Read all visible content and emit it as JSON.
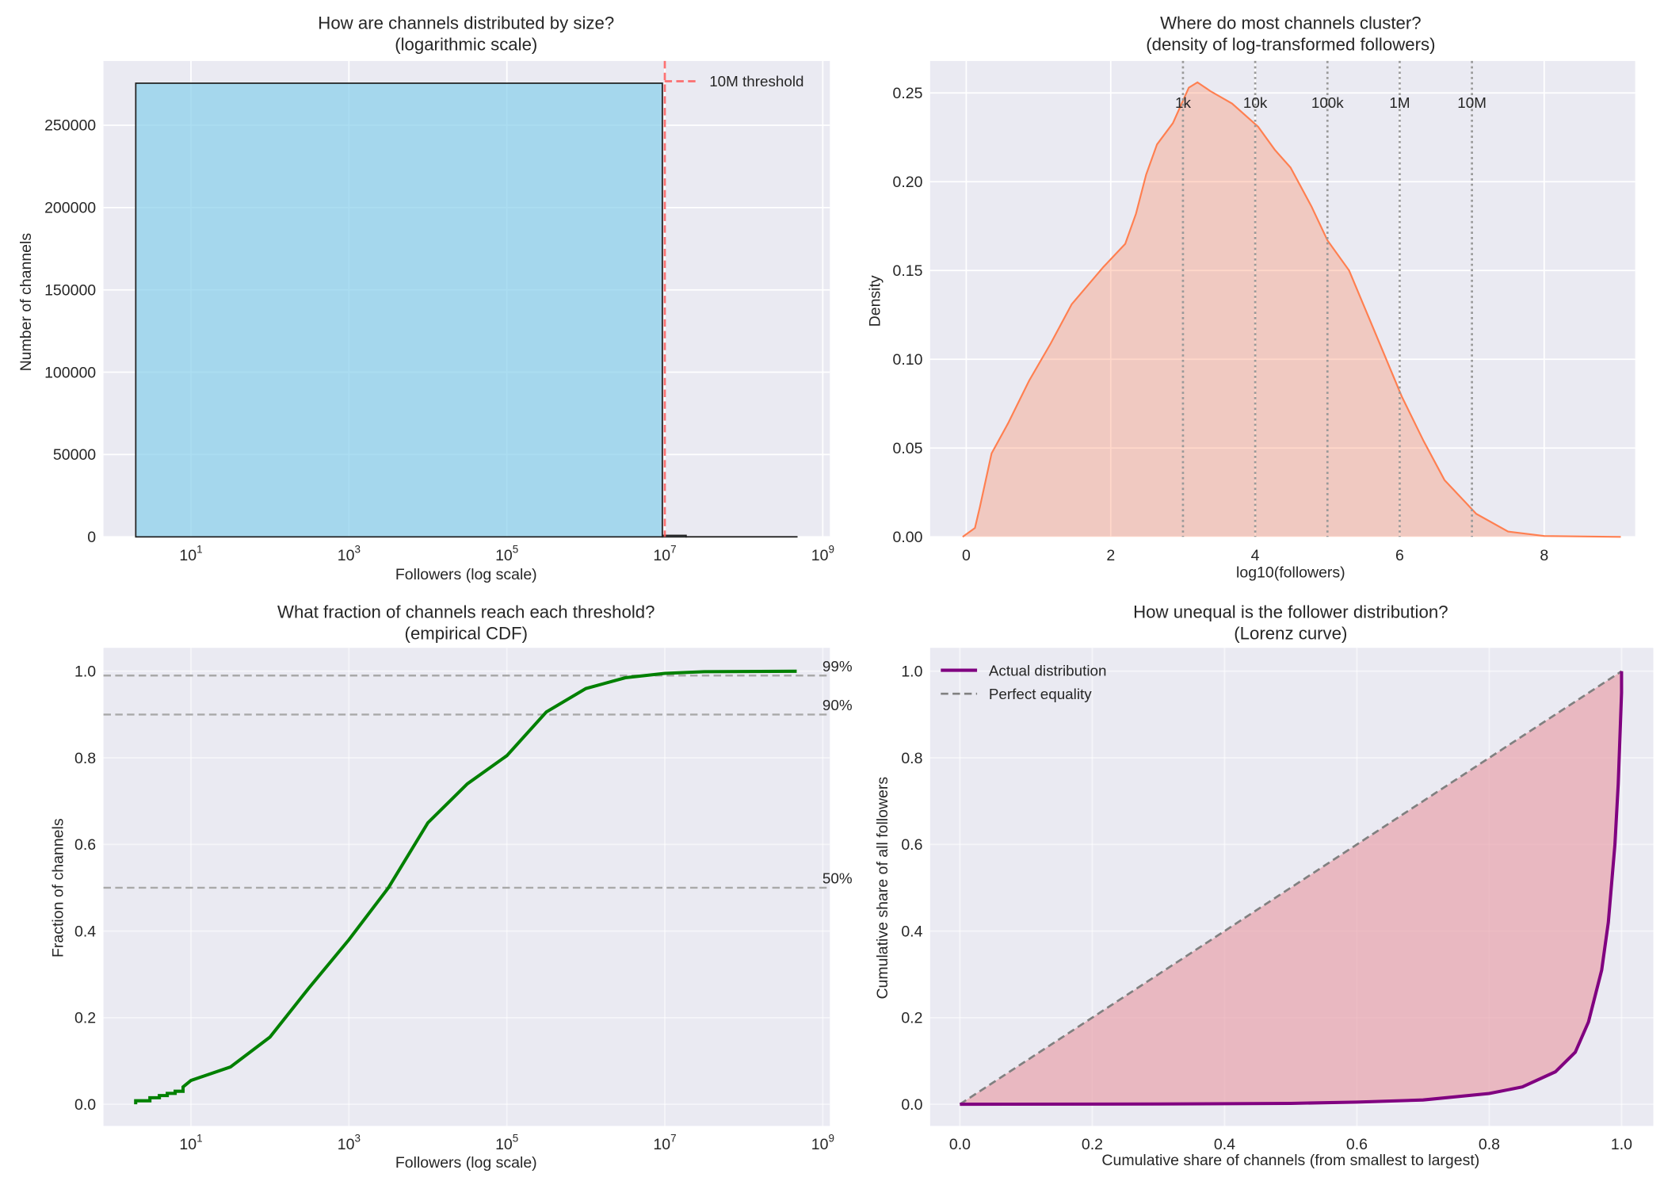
{
  "colors": {
    "background": "#eaeaf2",
    "grid": "#ffffff",
    "histogram": "#87ceeb",
    "threshold": "#ff5a5a",
    "kde": "#ff7f50",
    "cdf": "#008000",
    "reference": "#a9a9a9",
    "lorenz": "#800080",
    "lorenz_fill": "#e8a3ad",
    "equality": "#808080"
  },
  "chart_data": [
    {
      "type": "bar",
      "title": "How are channels distributed by size?",
      "subtitle": "(logarithmic scale)",
      "xlabel": "Followers (log scale)",
      "ylabel": "Number of channels",
      "xscale": "log",
      "xlim": [
        0.78,
        1230000000.0
      ],
      "ylim": [
        0,
        289000
      ],
      "grid": true,
      "xticks": [
        {
          "value": 10,
          "label": "10^1"
        },
        {
          "value": 1000,
          "label": "10^3"
        },
        {
          "value": 100000,
          "label": "10^5"
        },
        {
          "value": 10000000,
          "label": "10^7"
        },
        {
          "value": 1000000000,
          "label": "10^9"
        }
      ],
      "yticks": [
        0,
        50000,
        100000,
        150000,
        200000,
        250000
      ],
      "bins": [
        {
          "from": 2,
          "to": 9300000,
          "count": 275500
        },
        {
          "from": 9300000,
          "to": 18600000,
          "count": 900
        },
        {
          "from": 18600000,
          "to": 470000000,
          "count": 50
        }
      ],
      "threshold": {
        "value": 10000000,
        "label": "10M threshold"
      },
      "legend": "top-right"
    },
    {
      "type": "area",
      "title": "Where do most channels cluster?",
      "subtitle": "(density of log-transformed followers)",
      "xlabel": "log10(followers)",
      "ylabel": "Density",
      "xlim": [
        -0.5,
        9.26
      ],
      "ylim": [
        0,
        0.268
      ],
      "grid": true,
      "xticks": [
        0,
        2,
        4,
        6,
        8
      ],
      "yticks": [
        0.0,
        0.05,
        0.1,
        0.15,
        0.2,
        0.25
      ],
      "x": [
        -0.05,
        0.12,
        0.19,
        0.35,
        0.58,
        0.87,
        1.17,
        1.46,
        1.9,
        2.2,
        2.35,
        2.49,
        2.64,
        2.86,
        3.08,
        3.2,
        3.38,
        3.68,
        4.04,
        4.27,
        4.49,
        4.78,
        5.0,
        5.3,
        5.67,
        6.03,
        6.33,
        6.62,
        7.06,
        7.5,
        8.0,
        9.06
      ],
      "y": [
        0,
        0.005,
        0.017,
        0.047,
        0.064,
        0.088,
        0.109,
        0.131,
        0.152,
        0.165,
        0.182,
        0.204,
        0.221,
        0.233,
        0.253,
        0.256,
        0.251,
        0.244,
        0.231,
        0.218,
        0.208,
        0.186,
        0.167,
        0.15,
        0.114,
        0.079,
        0.054,
        0.032,
        0.013,
        0.003,
        0.0005,
        0
      ],
      "markers": [
        {
          "x": 3,
          "label": "1k"
        },
        {
          "x": 4,
          "label": "10k"
        },
        {
          "x": 5,
          "label": "100k"
        },
        {
          "x": 6,
          "label": "1M"
        },
        {
          "x": 7,
          "label": "10M"
        }
      ]
    },
    {
      "type": "line",
      "title": "What fraction of channels reach each threshold?",
      "subtitle": "(empirical CDF)",
      "xlabel": "Followers (log scale)",
      "ylabel": "Fraction of channels",
      "xscale": "log",
      "xlim": [
        0.78,
        1230000000.0
      ],
      "ylim": [
        -0.05,
        1.054
      ],
      "grid": true,
      "xticks": [
        {
          "value": 10,
          "label": "10^1"
        },
        {
          "value": 1000,
          "label": "10^3"
        },
        {
          "value": 100000,
          "label": "10^5"
        },
        {
          "value": 10000000,
          "label": "10^7"
        },
        {
          "value": 1000000000,
          "label": "10^9"
        }
      ],
      "yticks": [
        0.0,
        0.2,
        0.4,
        0.6,
        0.8,
        1.0
      ],
      "log10_x": [
        0.3,
        0.48,
        0.6,
        0.7,
        0.8,
        0.9,
        1.0,
        1.5,
        2.0,
        2.5,
        3.0,
        3.5,
        4.0,
        4.5,
        5.0,
        5.5,
        6.0,
        6.5,
        7.0,
        7.5,
        8.67
      ],
      "y": [
        0.008,
        0.015,
        0.02,
        0.025,
        0.03,
        0.04,
        0.055,
        0.086,
        0.155,
        0.27,
        0.38,
        0.5,
        0.65,
        0.74,
        0.805,
        0.906,
        0.96,
        0.985,
        0.995,
        0.999,
        1.0
      ],
      "reference_lines": [
        {
          "y": 0.99,
          "label": "99%"
        },
        {
          "y": 0.9,
          "label": "90%"
        },
        {
          "y": 0.5,
          "label": "50%"
        }
      ]
    },
    {
      "type": "line",
      "title": "How unequal is the follower distribution?",
      "subtitle": "(Lorenz curve)",
      "xlabel": "Cumulative share of channels (from smallest to largest)",
      "ylabel": "Cumulative share of all followers",
      "xlim": [
        -0.045,
        1.048
      ],
      "ylim": [
        -0.05,
        1.054
      ],
      "grid": true,
      "xticks": [
        0.0,
        0.2,
        0.4,
        0.6,
        0.8,
        1.0
      ],
      "yticks": [
        0.0,
        0.2,
        0.4,
        0.6,
        0.8,
        1.0
      ],
      "series": [
        {
          "name": "Actual distribution",
          "x": [
            0,
            0.3,
            0.5,
            0.6,
            0.7,
            0.8,
            0.85,
            0.9,
            0.93,
            0.95,
            0.97,
            0.98,
            0.99,
            0.995,
            1.0,
            1.0
          ],
          "y": [
            0,
            0.0005,
            0.002,
            0.005,
            0.01,
            0.025,
            0.04,
            0.075,
            0.12,
            0.19,
            0.31,
            0.42,
            0.6,
            0.74,
            0.95,
            1.0
          ]
        },
        {
          "name": "Perfect equality",
          "x": [
            0,
            1
          ],
          "y": [
            0,
            1
          ]
        }
      ],
      "legend": "top-left"
    }
  ]
}
